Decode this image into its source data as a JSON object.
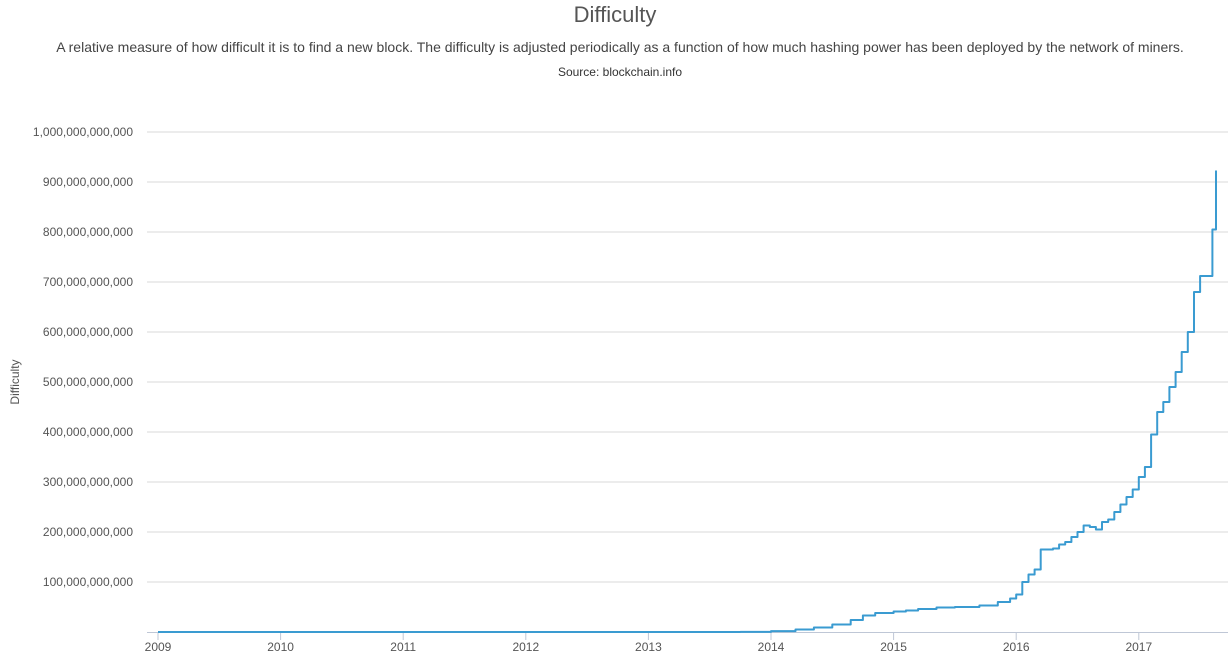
{
  "chart_data": {
    "type": "line",
    "title": "Difficulty",
    "subtitle": "A relative measure of how difficult it is to find a new block. The difficulty is adjusted periodically as a function of how much hashing power has been deployed by the network of miners.",
    "source": "Source: blockchain.info",
    "xlabel": "",
    "ylabel": "Difficulty",
    "xlim": [
      2009.0,
      2017.7
    ],
    "ylim": [
      0,
      1000000000000
    ],
    "grid": true,
    "x_ticks": [
      {
        "value": 2009,
        "label": "2009"
      },
      {
        "value": 2010,
        "label": "2010"
      },
      {
        "value": 2011,
        "label": "2011"
      },
      {
        "value": 2012,
        "label": "2012"
      },
      {
        "value": 2013,
        "label": "2013"
      },
      {
        "value": 2014,
        "label": "2014"
      },
      {
        "value": 2015,
        "label": "2015"
      },
      {
        "value": 2016,
        "label": "2016"
      },
      {
        "value": 2017,
        "label": "2017"
      }
    ],
    "y_ticks": [
      {
        "value": 100000000000,
        "label": "100,000,000,000"
      },
      {
        "value": 200000000000,
        "label": "200,000,000,000"
      },
      {
        "value": 300000000000,
        "label": "300,000,000,000"
      },
      {
        "value": 400000000000,
        "label": "400,000,000,000"
      },
      {
        "value": 500000000000,
        "label": "500,000,000,000"
      },
      {
        "value": 600000000000,
        "label": "600,000,000,000"
      },
      {
        "value": 700000000000,
        "label": "700,000,000,000"
      },
      {
        "value": 800000000000,
        "label": "800,000,000,000"
      },
      {
        "value": 900000000000,
        "label": "900,000,000,000"
      },
      {
        "value": 1000000000000,
        "label": "1,000,000,000,000"
      }
    ],
    "series": [
      {
        "color": "#3a9bd1",
        "x": [
          2009.0,
          2012.0,
          2013.0,
          2013.5,
          2013.75,
          2014.0,
          2014.2,
          2014.35,
          2014.5,
          2014.65,
          2014.75,
          2014.85,
          2015.0,
          2015.1,
          2015.2,
          2015.35,
          2015.5,
          2015.7,
          2015.85,
          2015.95,
          2016.0,
          2016.05,
          2016.1,
          2016.15,
          2016.2,
          2016.3,
          2016.35,
          2016.4,
          2016.45,
          2016.5,
          2016.55,
          2016.6,
          2016.65,
          2016.7,
          2016.75,
          2016.8,
          2016.85,
          2016.9,
          2016.95,
          2017.0,
          2017.05,
          2017.1,
          2017.15,
          2017.2,
          2017.25,
          2017.3,
          2017.35,
          2017.4,
          2017.45,
          2017.5,
          2017.55,
          2017.6,
          2017.63
        ],
        "values": [
          0,
          1500000,
          3000000,
          12000000,
          200000000,
          1800000000,
          5000000000,
          9000000000,
          15000000000,
          24000000000,
          33000000000,
          38000000000,
          41000000000,
          43000000000,
          46000000000,
          49000000000,
          50000000000,
          53000000000,
          60000000000,
          67000000000,
          75000000000,
          100000000000,
          115000000000,
          125000000000,
          165000000000,
          167000000000,
          175000000000,
          180000000000,
          190000000000,
          200000000000,
          213000000000,
          210000000000,
          205000000000,
          220000000000,
          225000000000,
          240000000000,
          255000000000,
          270000000000,
          285000000000,
          310000000000,
          330000000000,
          395000000000,
          440000000000,
          460000000000,
          490000000000,
          520000000000,
          560000000000,
          600000000000,
          680000000000,
          712000000000,
          712000000000,
          805000000000,
          923000000000
        ]
      }
    ]
  }
}
